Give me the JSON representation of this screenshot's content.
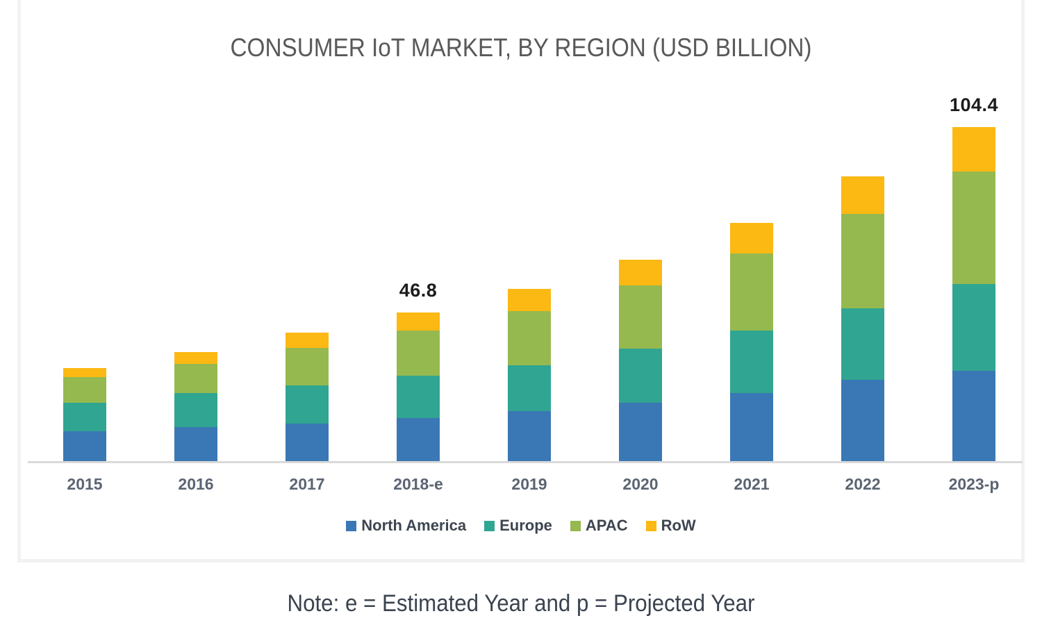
{
  "page": {
    "background_color": "#ffffff",
    "panel_border_color": "#f2f2f2",
    "axis_line_color": "#d9d9d9"
  },
  "chart_data": {
    "type": "bar",
    "stacked": true,
    "title": "CONSUMER IoT MARKET, BY REGION (USD BILLION)",
    "note": "Note: e = Estimated Year and p = Projected Year",
    "categories": [
      "2015",
      "2016",
      "2017",
      "2018-e",
      "2019",
      "2020",
      "2021",
      "2022",
      "2023-p"
    ],
    "series": [
      {
        "name": "North America",
        "color": "#3a77b5",
        "values": [
          9.7,
          11.0,
          12.2,
          13.9,
          16.1,
          18.7,
          21.7,
          25.7,
          28.5
        ]
      },
      {
        "name": "Europe",
        "color": "#30a591",
        "values": [
          8.8,
          10.6,
          11.9,
          13.2,
          14.2,
          16.8,
          19.3,
          22.3,
          27.0
        ]
      },
      {
        "name": "APAC",
        "color": "#95b94f",
        "values": [
          8.0,
          9.1,
          11.5,
          13.9,
          16.8,
          19.7,
          24.0,
          29.4,
          35.2
        ]
      },
      {
        "name": "RoW",
        "color": "#fcb813",
        "values": [
          3.0,
          3.6,
          4.9,
          5.8,
          7.0,
          8.0,
          9.6,
          11.7,
          13.7
        ]
      }
    ],
    "totals": [
      29.5,
      34.3,
      40.5,
      46.8,
      54.1,
      63.2,
      74.6,
      89.1,
      104.4
    ],
    "data_labels": {
      "2018-e": "46.8",
      "2023-p": "104.4"
    },
    "xlabel": "",
    "ylabel": "",
    "ylim": [
      0,
      112
    ],
    "grid": false,
    "legend_position": "bottom"
  }
}
